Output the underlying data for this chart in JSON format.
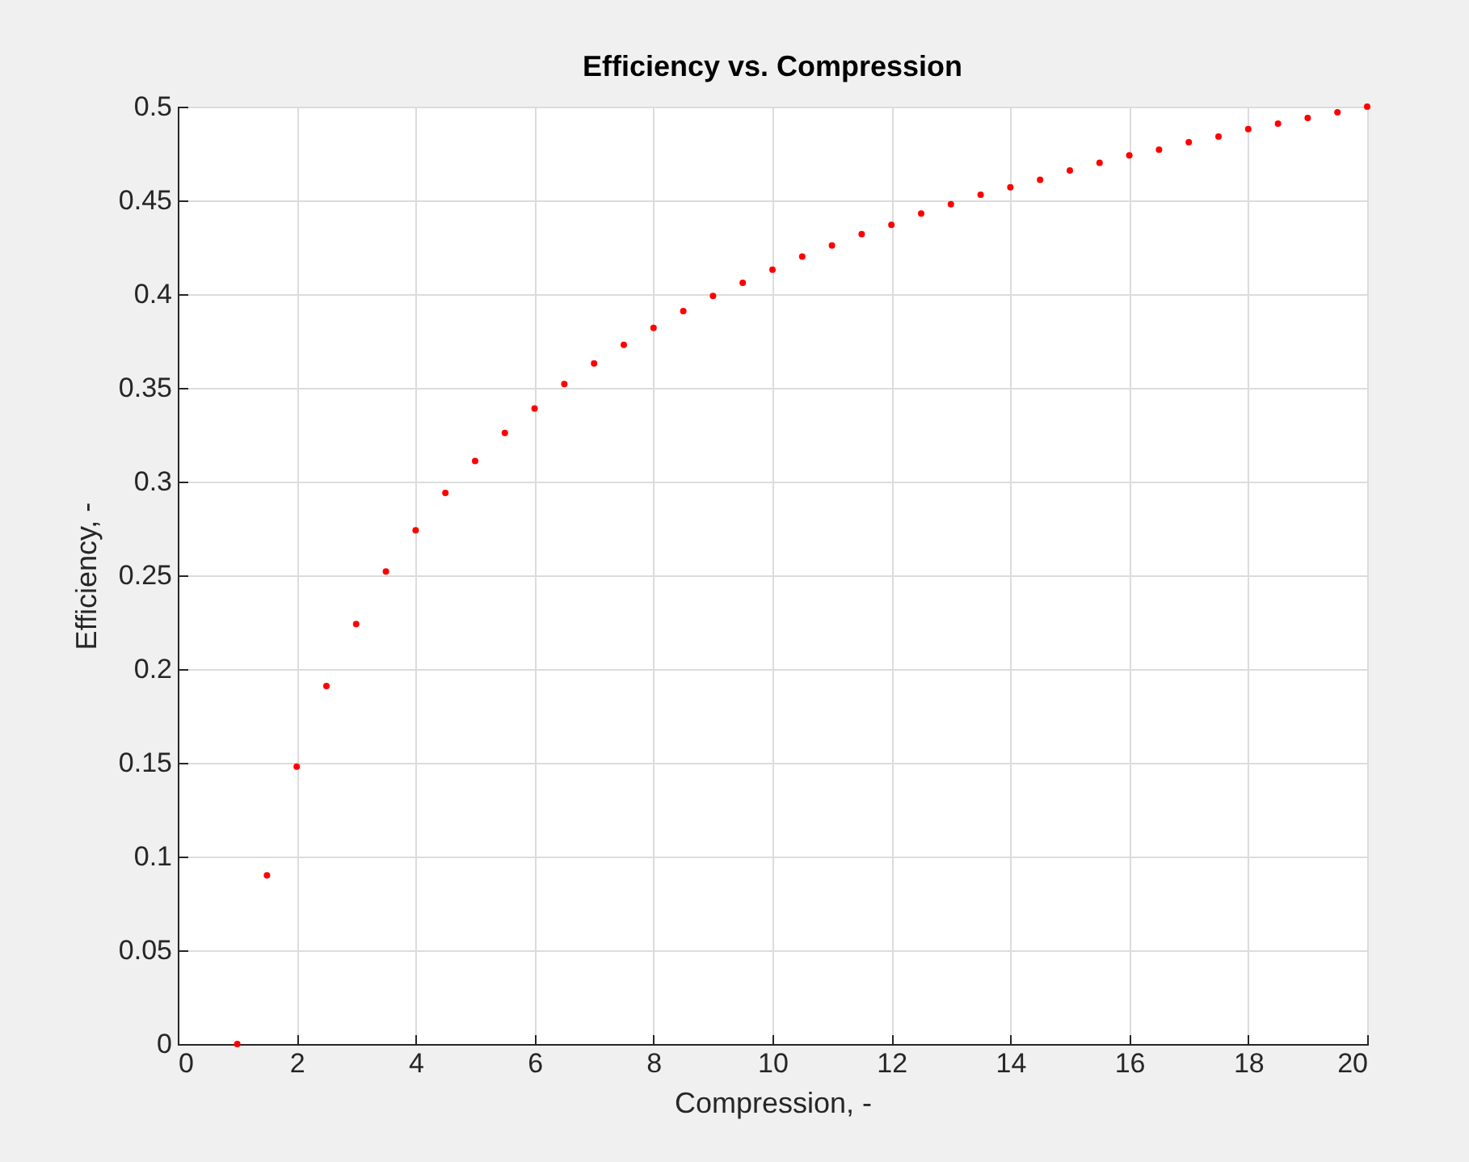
{
  "chart_data": {
    "type": "scatter",
    "title": "Efficiency vs. Compression",
    "xlabel": "Compression, -",
    "ylabel": "Efficiency, -",
    "x": [
      1,
      1.5,
      2,
      2.5,
      3,
      3.5,
      4,
      4.5,
      5,
      5.5,
      6,
      6.5,
      7,
      7.5,
      8,
      8.5,
      9,
      9.5,
      10,
      10.5,
      11,
      11.5,
      12,
      12.5,
      13,
      13.5,
      14,
      14.5,
      15,
      15.5,
      16,
      16.5,
      17,
      17.5,
      18,
      18.5,
      19,
      19.5,
      20
    ],
    "series": [
      {
        "color": "#ff0000",
        "values": [
          0,
          0.09,
          0.148,
          0.191,
          0.224,
          0.252,
          0.274,
          0.294,
          0.311,
          0.326,
          0.339,
          0.352,
          0.363,
          0.373,
          0.382,
          0.391,
          0.399,
          0.406,
          0.413,
          0.42,
          0.426,
          0.432,
          0.437,
          0.443,
          0.448,
          0.453,
          0.457,
          0.461,
          0.466,
          0.47,
          0.474,
          0.477,
          0.481,
          0.484,
          0.488,
          0.491,
          0.494,
          0.497,
          0.5
        ]
      }
    ],
    "xlim": [
      0,
      20
    ],
    "xticks": [
      0,
      2,
      4,
      6,
      8,
      10,
      12,
      14,
      16,
      18,
      20
    ],
    "ylim": [
      0,
      0.5
    ],
    "yticks": [
      0,
      0.05,
      0.1,
      0.15,
      0.2,
      0.25,
      0.3,
      0.35,
      0.4,
      0.45,
      0.5
    ],
    "grid": true,
    "legend": false,
    "marker": "circle"
  }
}
